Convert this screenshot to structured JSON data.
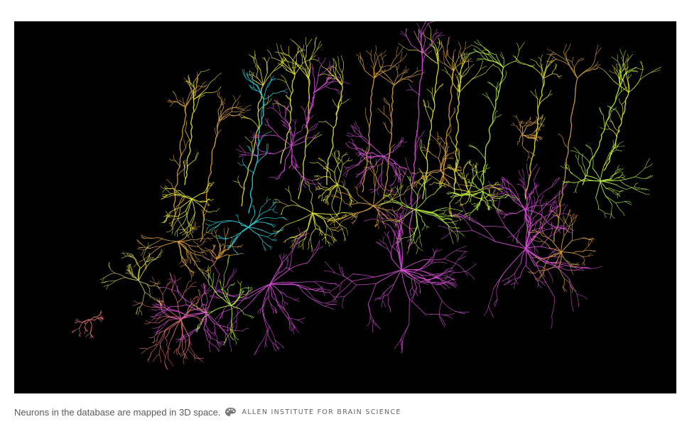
{
  "figure": {
    "caption": "Neurons in the database are mapped in 3D space.",
    "credit": "ALLEN INSTITUTE FOR BRAIN SCIENCE",
    "credit_icon": "palette-icon",
    "background_color": "#000000",
    "neuron_colors": [
      "#e8e83a",
      "#d9a040",
      "#d84fd8",
      "#2fd6e0",
      "#b8f040",
      "#e07070",
      "#c8c850"
    ]
  }
}
